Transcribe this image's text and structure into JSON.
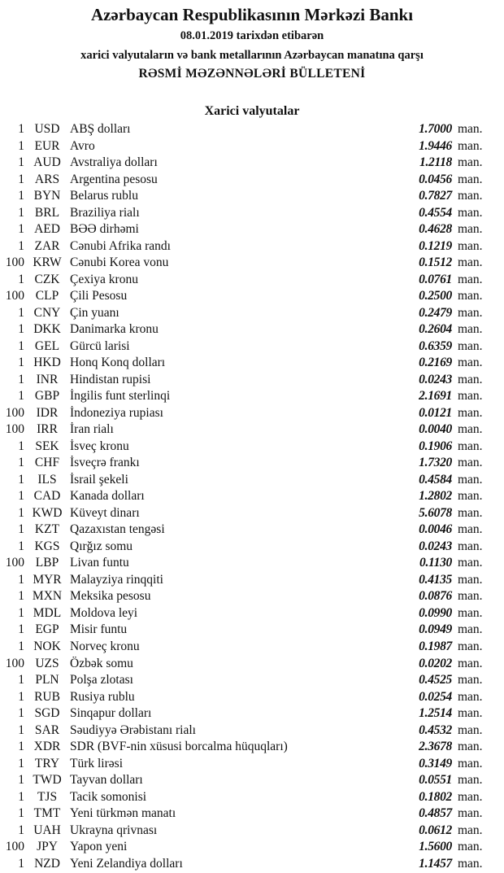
{
  "header": {
    "title": "Azərbaycan Respublikasının Mərkəzi Bankı",
    "date_line": "08.01.2019  tarixdən etibarən",
    "subtitle": "xarici valyutaların və bank metallarının Azərbaycan manatına qarşı",
    "bulletin": "RƏSMİ MƏZƏNNƏLƏRİ BÜLLETENİ"
  },
  "section_title": "Xarici valyutalar",
  "rates": [
    {
      "amount": "1",
      "code": "USD",
      "name": "ABŞ dolları",
      "value": "1.7000",
      "unit": "man."
    },
    {
      "amount": "1",
      "code": "EUR",
      "name": "Avro",
      "value": "1.9446",
      "unit": "man."
    },
    {
      "amount": "1",
      "code": "AUD",
      "name": "Avstraliya dolları",
      "value": "1.2118",
      "unit": "man."
    },
    {
      "amount": "1",
      "code": "ARS",
      "name": "Argentina pesosu",
      "value": "0.0456",
      "unit": "man."
    },
    {
      "amount": "1",
      "code": "BYN",
      "name": "Belarus rublu",
      "value": "0.7827",
      "unit": "man."
    },
    {
      "amount": "1",
      "code": "BRL",
      "name": "Braziliya rialı",
      "value": "0.4554",
      "unit": "man."
    },
    {
      "amount": "1",
      "code": "AED",
      "name": "BƏƏ dirhəmi",
      "value": "0.4628",
      "unit": "man."
    },
    {
      "amount": "1",
      "code": "ZAR",
      "name": "Cənubi Afrika randı",
      "value": "0.1219",
      "unit": "man."
    },
    {
      "amount": "100",
      "code": "KRW",
      "name": "Cənubi Korea vonu",
      "value": "0.1512",
      "unit": "man."
    },
    {
      "amount": "1",
      "code": "CZK",
      "name": "Çexiya kronu",
      "value": "0.0761",
      "unit": "man."
    },
    {
      "amount": "100",
      "code": "CLP",
      "name": "Çili Pesosu",
      "value": "0.2500",
      "unit": "man."
    },
    {
      "amount": "1",
      "code": "CNY",
      "name": "Çin yuanı",
      "value": "0.2479",
      "unit": "man."
    },
    {
      "amount": "1",
      "code": "DKK",
      "name": "Danimarka kronu",
      "value": "0.2604",
      "unit": "man."
    },
    {
      "amount": "1",
      "code": "GEL",
      "name": "Gürcü larisi",
      "value": "0.6359",
      "unit": "man."
    },
    {
      "amount": "1",
      "code": "HKD",
      "name": "Honq Konq dolları",
      "value": "0.2169",
      "unit": "man."
    },
    {
      "amount": "1",
      "code": "INR",
      "name": "Hindistan rupisi",
      "value": "0.0243",
      "unit": "man."
    },
    {
      "amount": "1",
      "code": "GBP",
      "name": "İngilis funt sterlinqi",
      "value": "2.1691",
      "unit": "man."
    },
    {
      "amount": "100",
      "code": "IDR",
      "name": "İndoneziya rupiası",
      "value": "0.0121",
      "unit": "man."
    },
    {
      "amount": "100",
      "code": "IRR",
      "name": "İran rialı",
      "value": "0.0040",
      "unit": "man."
    },
    {
      "amount": "1",
      "code": "SEK",
      "name": "İsveç kronu",
      "value": "0.1906",
      "unit": "man."
    },
    {
      "amount": "1",
      "code": "CHF",
      "name": "İsveçrə frankı",
      "value": "1.7320",
      "unit": "man."
    },
    {
      "amount": "1",
      "code": "ILS",
      "name": "İsrail şekeli",
      "value": "0.4584",
      "unit": "man."
    },
    {
      "amount": "1",
      "code": "CAD",
      "name": "Kanada dolları",
      "value": "1.2802",
      "unit": "man."
    },
    {
      "amount": "1",
      "code": "KWD",
      "name": "Küveyt dinarı",
      "value": "5.6078",
      "unit": "man."
    },
    {
      "amount": "1",
      "code": "KZT",
      "name": "Qazaxıstan tengəsi",
      "value": "0.0046",
      "unit": "man."
    },
    {
      "amount": "1",
      "code": "KGS",
      "name": "Qırğız somu",
      "value": "0.0243",
      "unit": "man."
    },
    {
      "amount": "100",
      "code": "LBP",
      "name": "Livan funtu",
      "value": "0.1130",
      "unit": "man."
    },
    {
      "amount": "1",
      "code": "MYR",
      "name": "Malayziya rinqqiti",
      "value": "0.4135",
      "unit": "man."
    },
    {
      "amount": "1",
      "code": "MXN",
      "name": "Meksika pesosu",
      "value": "0.0876",
      "unit": "man."
    },
    {
      "amount": "1",
      "code": "MDL",
      "name": "Moldova leyi",
      "value": "0.0990",
      "unit": "man."
    },
    {
      "amount": "1",
      "code": "EGP",
      "name": "Misir funtu",
      "value": "0.0949",
      "unit": "man."
    },
    {
      "amount": "1",
      "code": "NOK",
      "name": "Norveç kronu",
      "value": "0.1987",
      "unit": "man."
    },
    {
      "amount": "100",
      "code": "UZS",
      "name": "Özbək somu",
      "value": "0.0202",
      "unit": "man."
    },
    {
      "amount": "1",
      "code": "PLN",
      "name": "Polşa zlotası",
      "value": "0.4525",
      "unit": "man."
    },
    {
      "amount": "1",
      "code": "RUB",
      "name": "Rusiya rublu",
      "value": "0.0254",
      "unit": "man."
    },
    {
      "amount": "1",
      "code": "SGD",
      "name": "Sinqapur dolları",
      "value": "1.2514",
      "unit": "man."
    },
    {
      "amount": "1",
      "code": "SAR",
      "name": "Səudiyyə Ərəbistanı rialı",
      "value": "0.4532",
      "unit": "man."
    },
    {
      "amount": "1",
      "code": "XDR",
      "name": "SDR (BVF-nin xüsusi borcalma hüquqları)",
      "value": "2.3678",
      "unit": "man."
    },
    {
      "amount": "1",
      "code": "TRY",
      "name": "Türk lirəsi",
      "value": "0.3149",
      "unit": "man."
    },
    {
      "amount": "1",
      "code": "TWD",
      "name": "Tayvan dolları",
      "value": "0.0551",
      "unit": "man."
    },
    {
      "amount": "1",
      "code": "TJS",
      "name": "Tacik somonisi",
      "value": "0.1802",
      "unit": "man."
    },
    {
      "amount": "1",
      "code": "TMT",
      "name": "Yeni türkmən manatı",
      "value": "0.4857",
      "unit": "man."
    },
    {
      "amount": "1",
      "code": "UAH",
      "name": "Ukrayna qrivnası",
      "value": "0.0612",
      "unit": "man."
    },
    {
      "amount": "100",
      "code": "JPY",
      "name": "Yapon yeni",
      "value": "1.5600",
      "unit": "man."
    },
    {
      "amount": "1",
      "code": "NZD",
      "name": "Yeni Zelandiya dolları",
      "value": "1.1457",
      "unit": "man."
    }
  ]
}
